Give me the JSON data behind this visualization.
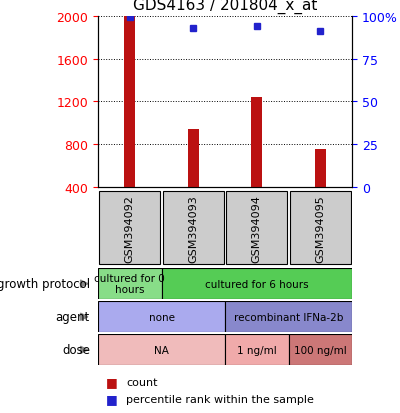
{
  "title": "GDS4163 / 201804_x_at",
  "samples": [
    "GSM394092",
    "GSM394093",
    "GSM394094",
    "GSM394095"
  ],
  "counts": [
    2000,
    940,
    1240,
    760
  ],
  "percentiles": [
    99,
    93,
    94,
    91
  ],
  "ylim_left": [
    400,
    2000
  ],
  "ylim_right": [
    0,
    100
  ],
  "yticks_left": [
    400,
    800,
    1200,
    1600,
    2000
  ],
  "yticks_right": [
    0,
    25,
    50,
    75,
    100
  ],
  "yticklabels_right": [
    "0",
    "25",
    "50",
    "75",
    "100%"
  ],
  "bar_color": "#bb1111",
  "dot_color": "#2222cc",
  "bar_width": 0.18,
  "gp_groups": [
    {
      "label": "cultured for 0\nhours",
      "start": 0,
      "end": 1,
      "color": "#88dd88"
    },
    {
      "label": "cultured for 6 hours",
      "start": 1,
      "end": 4,
      "color": "#55cc55"
    }
  ],
  "agent_groups": [
    {
      "label": "none",
      "start": 0,
      "end": 2,
      "color": "#aaaaee"
    },
    {
      "label": "recombinant IFNa-2b",
      "start": 2,
      "end": 4,
      "color": "#8888cc"
    }
  ],
  "dose_groups": [
    {
      "label": "NA",
      "start": 0,
      "end": 2,
      "color": "#f0bbbb"
    },
    {
      "label": "1 ng/ml",
      "start": 2,
      "end": 3,
      "color": "#f0aaaa"
    },
    {
      "label": "100 ng/ml",
      "start": 3,
      "end": 4,
      "color": "#cc7777"
    }
  ],
  "sample_bg": "#cccccc",
  "fig_width": 4.0,
  "fig_height": 4.14,
  "dpi": 100
}
